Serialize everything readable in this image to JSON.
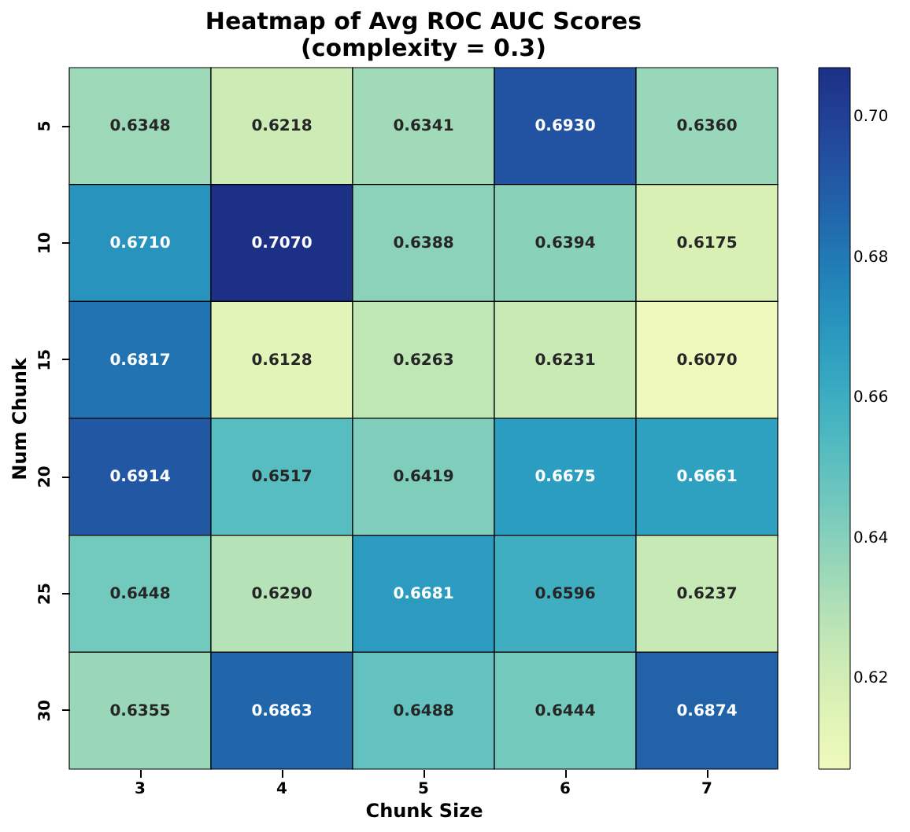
{
  "chart_data": {
    "type": "heatmap",
    "title": "Heatmap of Avg ROC AUC Scores\n(complexity = 0.3)",
    "xlabel": "Chunk Size",
    "ylabel": "Num Chunk",
    "categories": [
      "3",
      "4",
      "5",
      "6",
      "7"
    ],
    "y_categories": [
      "5",
      "10",
      "15",
      "20",
      "25",
      "30"
    ],
    "cells": [
      [
        0.6348,
        0.6218,
        0.6341,
        0.693,
        0.636
      ],
      [
        0.671,
        0.707,
        0.6388,
        0.6394,
        0.6175
      ],
      [
        0.6817,
        0.6128,
        0.6263,
        0.6231,
        0.607
      ],
      [
        0.6914,
        0.6517,
        0.6419,
        0.6675,
        0.6661
      ],
      [
        0.6448,
        0.629,
        0.6681,
        0.6596,
        0.6237
      ],
      [
        0.6355,
        0.6863,
        0.6488,
        0.6444,
        0.6874
      ]
    ],
    "cell_labels": [
      [
        "0.6348",
        "0.6218",
        "0.6341",
        "0.6930",
        "0.6360"
      ],
      [
        "0.6710",
        "0.7070",
        "0.6388",
        "0.6394",
        "0.6175"
      ],
      [
        "0.6817",
        "0.6128",
        "0.6263",
        "0.6231",
        "0.6070"
      ],
      [
        "0.6914",
        "0.6517",
        "0.6419",
        "0.6675",
        "0.6661"
      ],
      [
        "0.6448",
        "0.6290",
        "0.6681",
        "0.6596",
        "0.6237"
      ],
      [
        "0.6355",
        "0.6863",
        "0.6488",
        "0.6444",
        "0.6874"
      ]
    ],
    "clim": [
      0.607,
      0.707
    ],
    "cticks": [
      0.62,
      0.64,
      0.66,
      0.68,
      {
        "value": 0.7,
        "label": "0.70"
      }
    ]
  }
}
